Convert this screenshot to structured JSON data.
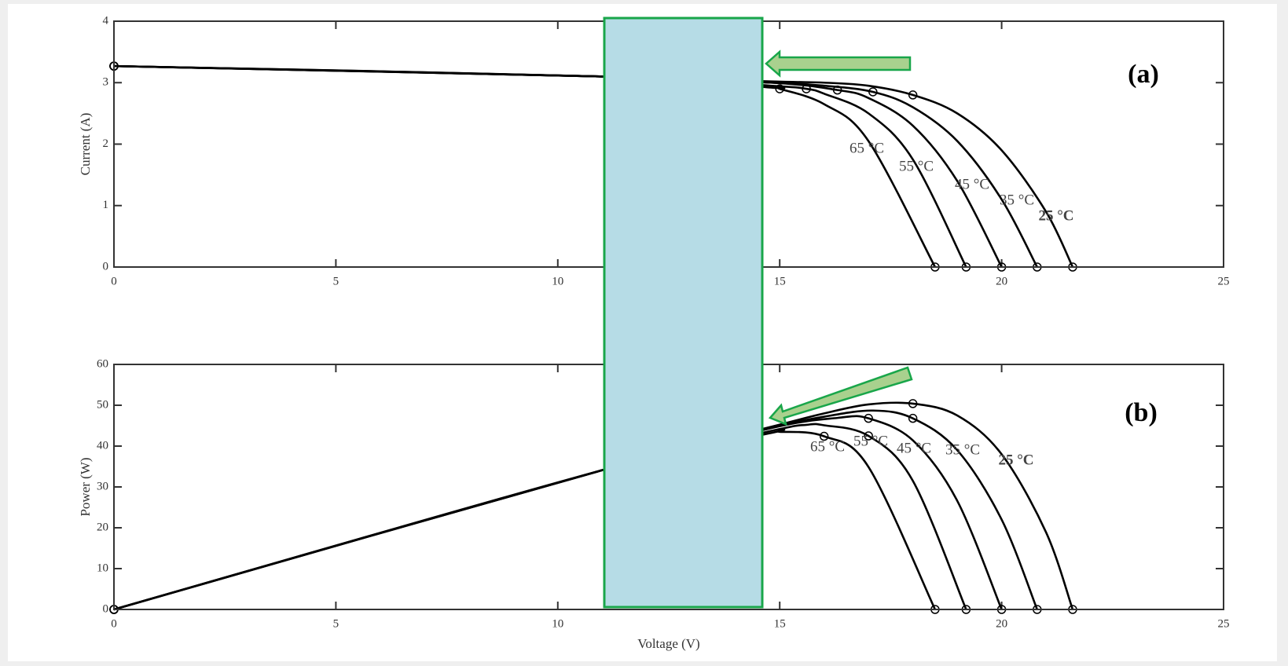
{
  "chart_data": [
    {
      "type": "line",
      "annotation": "(a)",
      "ylabel": "Current (A)",
      "xlim": [
        0,
        25
      ],
      "xticks": [
        0,
        5,
        10,
        15,
        20,
        25
      ],
      "ylim": [
        0,
        4
      ],
      "yticks": [
        0,
        1,
        2,
        3,
        4
      ],
      "series": [
        {
          "name": "25 °C",
          "color": "#000000",
          "x": [
            0,
            11,
            14.8,
            16,
            17,
            18,
            19,
            20,
            21,
            21.6
          ],
          "values": [
            3.27,
            3.1,
            3.02,
            3.0,
            2.95,
            2.8,
            2.5,
            1.9,
            0.9,
            0
          ]
        },
        {
          "name": "35 °C",
          "color": "#000000",
          "x": [
            0,
            11,
            14.8,
            16,
            17.1,
            18,
            19,
            20,
            20.8
          ],
          "values": [
            3.27,
            3.1,
            3.0,
            2.95,
            2.85,
            2.6,
            2.05,
            1.1,
            0
          ]
        },
        {
          "name": "45 °C",
          "color": "#000000",
          "x": [
            0,
            11,
            14.8,
            16.3,
            17,
            18,
            19,
            20
          ],
          "values": [
            3.27,
            3.1,
            3.0,
            2.88,
            2.75,
            2.3,
            1.4,
            0
          ]
        },
        {
          "name": "55 °C",
          "color": "#000000",
          "x": [
            0,
            11,
            14.8,
            15.6,
            16,
            17,
            18,
            19.2
          ],
          "values": [
            3.27,
            3.1,
            2.95,
            2.9,
            2.82,
            2.5,
            1.75,
            0
          ]
        },
        {
          "name": "65 °C",
          "color": "#000000",
          "x": [
            0,
            11,
            14.8,
            15,
            16,
            17,
            18.5
          ],
          "values": [
            3.27,
            3.1,
            2.92,
            2.9,
            2.65,
            2.05,
            0
          ]
        }
      ]
    },
    {
      "type": "line",
      "annotation": "(b)",
      "ylabel": "Power (W)",
      "xlabel": "Voltage (V)",
      "xlim": [
        0,
        25
      ],
      "xticks": [
        0,
        5,
        10,
        15,
        20,
        25
      ],
      "ylim": [
        0,
        60
      ],
      "yticks": [
        0,
        10,
        20,
        30,
        40,
        50,
        60
      ],
      "series": [
        {
          "name": "25 °C",
          "color": "#000000",
          "x": [
            0,
            11,
            14.8,
            16,
            17,
            18,
            19,
            20,
            21,
            21.6
          ],
          "values": [
            0,
            34.1,
            44.7,
            48,
            50.2,
            50.4,
            47.5,
            38,
            18.9,
            0
          ]
        },
        {
          "name": "35 °C",
          "color": "#000000",
          "x": [
            0,
            11,
            14.8,
            16,
            17.1,
            18,
            19,
            20,
            20.8
          ],
          "values": [
            0,
            34.1,
            44.4,
            47.2,
            48.7,
            46.8,
            39,
            22,
            0
          ]
        },
        {
          "name": "45 °C",
          "color": "#000000",
          "x": [
            0,
            11,
            14.8,
            16.3,
            17,
            18,
            19,
            20
          ],
          "values": [
            0,
            34.1,
            44.4,
            46.9,
            46.8,
            41.4,
            26.6,
            0
          ]
        },
        {
          "name": "55 °C",
          "color": "#000000",
          "x": [
            0,
            11,
            14.8,
            15.6,
            16,
            17,
            18,
            19.2
          ],
          "values": [
            0,
            34.1,
            43.7,
            45.2,
            45.1,
            42.5,
            31.5,
            0
          ]
        },
        {
          "name": "65 °C",
          "color": "#000000",
          "x": [
            0,
            11,
            14.8,
            15,
            16,
            17,
            18.5
          ],
          "values": [
            0,
            34.1,
            43.2,
            43.5,
            42.4,
            34.9,
            0
          ]
        }
      ]
    }
  ]
}
